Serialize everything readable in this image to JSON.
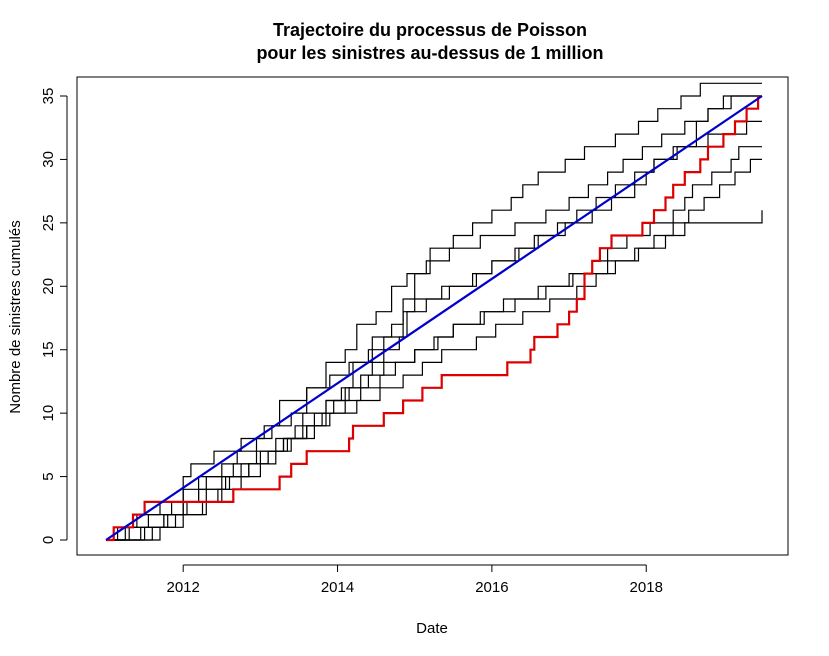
{
  "chart_data": {
    "type": "line",
    "title_lines": [
      "Trajectoire du processus de Poisson",
      "pour les sinistres au-dessus de 1 million"
    ],
    "xlabel": "Date",
    "ylabel": "Nombre de sinistres cumulés",
    "xlim": [
      2011.0,
      2019.5
    ],
    "ylim": [
      0,
      35
    ],
    "x_ticks": [
      2012,
      2014,
      2016,
      2018
    ],
    "x_tick_labels": [
      "2012",
      "2014",
      "2016",
      "2018"
    ],
    "y_ticks": [
      0,
      5,
      10,
      15,
      20,
      25,
      30,
      35
    ],
    "y_tick_labels": [
      "0",
      "5",
      "10",
      "15",
      "20",
      "25",
      "30",
      "35"
    ],
    "grid": false,
    "legend": "none",
    "highlight_series": {
      "color": "#dd0000",
      "type": "step",
      "points": [
        [
          2011.0,
          0
        ],
        [
          2011.1,
          1
        ],
        [
          2011.35,
          2
        ],
        [
          2011.5,
          3
        ],
        [
          2012.35,
          3
        ],
        [
          2012.65,
          4
        ],
        [
          2013.1,
          4
        ],
        [
          2013.25,
          5
        ],
        [
          2013.4,
          6
        ],
        [
          2013.6,
          7
        ],
        [
          2014.15,
          8
        ],
        [
          2014.2,
          9
        ],
        [
          2014.6,
          10
        ],
        [
          2014.85,
          11
        ],
        [
          2015.1,
          12
        ],
        [
          2015.35,
          13
        ],
        [
          2015.95,
          13
        ],
        [
          2016.2,
          14
        ],
        [
          2016.5,
          15
        ],
        [
          2016.55,
          16
        ],
        [
          2016.85,
          17
        ],
        [
          2017.0,
          18
        ],
        [
          2017.1,
          19
        ],
        [
          2017.2,
          21
        ],
        [
          2017.3,
          22
        ],
        [
          2017.4,
          23
        ],
        [
          2017.55,
          24
        ],
        [
          2017.95,
          25
        ],
        [
          2018.1,
          26
        ],
        [
          2018.25,
          27
        ],
        [
          2018.35,
          28
        ],
        [
          2018.5,
          29
        ],
        [
          2018.7,
          30
        ],
        [
          2018.8,
          31
        ],
        [
          2019.0,
          32
        ],
        [
          2019.15,
          33
        ],
        [
          2019.3,
          34
        ],
        [
          2019.45,
          35
        ]
      ]
    },
    "other_series_color": "#000000",
    "other_series": [
      {
        "points": [
          [
            2011.0,
            0
          ],
          [
            2011.15,
            1
          ],
          [
            2011.4,
            2
          ],
          [
            2011.7,
            3
          ],
          [
            2012.0,
            4
          ],
          [
            2012.3,
            5
          ],
          [
            2012.65,
            6
          ],
          [
            2012.95,
            7
          ],
          [
            2013.2,
            8
          ],
          [
            2013.45,
            9
          ],
          [
            2013.7,
            10
          ],
          [
            2013.85,
            11
          ],
          [
            2014.1,
            12
          ],
          [
            2014.3,
            13
          ],
          [
            2014.45,
            14
          ],
          [
            2014.6,
            15
          ],
          [
            2014.8,
            16
          ],
          [
            2014.9,
            18
          ],
          [
            2015.0,
            19
          ],
          [
            2015.35,
            20
          ],
          [
            2015.8,
            21
          ],
          [
            2016.0,
            22
          ],
          [
            2016.3,
            23
          ],
          [
            2016.55,
            24
          ],
          [
            2016.95,
            25
          ],
          [
            2017.3,
            26
          ],
          [
            2017.55,
            27
          ],
          [
            2017.85,
            28
          ],
          [
            2018.0,
            29
          ],
          [
            2018.1,
            30
          ],
          [
            2018.35,
            31
          ],
          [
            2018.65,
            33
          ],
          [
            2018.8,
            34
          ],
          [
            2019.1,
            35
          ],
          [
            2019.5,
            35
          ]
        ]
      },
      {
        "points": [
          [
            2011.0,
            0
          ],
          [
            2011.3,
            1
          ],
          [
            2011.75,
            2
          ],
          [
            2012.05,
            3
          ],
          [
            2012.2,
            4
          ],
          [
            2012.5,
            5
          ],
          [
            2012.75,
            6
          ],
          [
            2013.0,
            7
          ],
          [
            2013.3,
            8
          ],
          [
            2013.6,
            9
          ],
          [
            2013.85,
            10
          ],
          [
            2014.1,
            11
          ],
          [
            2014.3,
            12
          ],
          [
            2014.55,
            13
          ],
          [
            2014.75,
            14
          ],
          [
            2015.0,
            15
          ],
          [
            2015.25,
            16
          ],
          [
            2015.5,
            17
          ],
          [
            2015.9,
            18
          ],
          [
            2016.3,
            19
          ],
          [
            2016.7,
            20
          ],
          [
            2017.0,
            21
          ],
          [
            2017.3,
            22
          ],
          [
            2017.5,
            23
          ],
          [
            2017.75,
            24
          ],
          [
            2018.05,
            25
          ],
          [
            2018.35,
            26
          ],
          [
            2018.5,
            27
          ],
          [
            2018.6,
            28
          ],
          [
            2018.85,
            29
          ],
          [
            2019.1,
            30
          ],
          [
            2019.2,
            31
          ],
          [
            2019.5,
            31
          ]
        ]
      },
      {
        "points": [
          [
            2011.0,
            0
          ],
          [
            2011.6,
            1
          ],
          [
            2011.9,
            2
          ],
          [
            2012.3,
            3
          ],
          [
            2012.45,
            4
          ],
          [
            2012.6,
            5
          ],
          [
            2012.85,
            6
          ],
          [
            2013.1,
            7
          ],
          [
            2013.35,
            8
          ],
          [
            2013.6,
            9
          ],
          [
            2013.8,
            10
          ],
          [
            2013.95,
            11
          ],
          [
            2014.15,
            12
          ],
          [
            2014.4,
            13
          ],
          [
            2014.6,
            14
          ],
          [
            2015.0,
            15
          ],
          [
            2015.3,
            16
          ],
          [
            2015.5,
            17
          ],
          [
            2015.85,
            18
          ],
          [
            2016.15,
            19
          ],
          [
            2016.6,
            20
          ],
          [
            2017.05,
            21
          ],
          [
            2017.5,
            22
          ],
          [
            2017.9,
            23
          ],
          [
            2018.25,
            24
          ],
          [
            2018.5,
            25
          ],
          [
            2019.5,
            25
          ],
          [
            2019.5,
            26
          ]
        ]
      },
      {
        "points": [
          [
            2011.0,
            0
          ],
          [
            2011.25,
            1
          ],
          [
            2011.55,
            2
          ],
          [
            2011.85,
            3
          ],
          [
            2012.0,
            5
          ],
          [
            2012.1,
            6
          ],
          [
            2012.4,
            7
          ],
          [
            2012.75,
            8
          ],
          [
            2013.05,
            9
          ],
          [
            2013.25,
            11
          ],
          [
            2013.6,
            12
          ],
          [
            2013.9,
            13
          ],
          [
            2014.15,
            14
          ],
          [
            2014.4,
            15
          ],
          [
            2014.6,
            16
          ],
          [
            2014.85,
            18
          ],
          [
            2015.15,
            19
          ],
          [
            2015.45,
            20
          ],
          [
            2015.75,
            21
          ],
          [
            2016.0,
            22
          ],
          [
            2016.35,
            23
          ],
          [
            2016.6,
            24
          ],
          [
            2016.85,
            25
          ],
          [
            2017.1,
            26
          ],
          [
            2017.35,
            27
          ],
          [
            2017.6,
            28
          ],
          [
            2017.85,
            29
          ],
          [
            2018.1,
            30
          ],
          [
            2018.4,
            31
          ],
          [
            2018.8,
            32
          ],
          [
            2019.3,
            33
          ],
          [
            2019.5,
            33
          ]
        ]
      },
      {
        "points": [
          [
            2011.0,
            0
          ],
          [
            2011.45,
            1
          ],
          [
            2011.8,
            2
          ],
          [
            2012.0,
            3
          ],
          [
            2012.3,
            4
          ],
          [
            2012.55,
            5
          ],
          [
            2012.85,
            6
          ],
          [
            2013.1,
            7
          ],
          [
            2013.3,
            8
          ],
          [
            2013.55,
            10
          ],
          [
            2013.85,
            11
          ],
          [
            2014.05,
            12
          ],
          [
            2014.2,
            14
          ],
          [
            2014.45,
            16
          ],
          [
            2014.7,
            17
          ],
          [
            2014.85,
            19
          ],
          [
            2015.0,
            21
          ],
          [
            2015.2,
            23
          ],
          [
            2015.5,
            24
          ],
          [
            2015.75,
            25
          ],
          [
            2016.0,
            26
          ],
          [
            2016.25,
            27
          ],
          [
            2016.4,
            28
          ],
          [
            2016.6,
            29
          ],
          [
            2016.95,
            30
          ],
          [
            2017.2,
            31
          ],
          [
            2017.6,
            32
          ],
          [
            2017.9,
            33
          ],
          [
            2018.15,
            34
          ],
          [
            2018.45,
            35
          ],
          [
            2018.7,
            36
          ],
          [
            2019.5,
            36
          ]
        ]
      },
      {
        "points": [
          [
            2011.0,
            0
          ],
          [
            2011.5,
            1
          ],
          [
            2011.75,
            2
          ],
          [
            2012.0,
            3
          ],
          [
            2012.2,
            5
          ],
          [
            2012.5,
            6
          ],
          [
            2012.7,
            7
          ],
          [
            2012.95,
            8
          ],
          [
            2013.15,
            9
          ],
          [
            2013.4,
            10
          ],
          [
            2013.6,
            12
          ],
          [
            2013.85,
            14
          ],
          [
            2014.1,
            15
          ],
          [
            2014.25,
            17
          ],
          [
            2014.5,
            18
          ],
          [
            2014.7,
            20
          ],
          [
            2014.9,
            21
          ],
          [
            2015.15,
            22
          ],
          [
            2015.45,
            23
          ],
          [
            2015.85,
            24
          ],
          [
            2016.3,
            25
          ],
          [
            2016.7,
            26
          ],
          [
            2017.0,
            27
          ],
          [
            2017.25,
            28
          ],
          [
            2017.5,
            29
          ],
          [
            2017.7,
            30
          ],
          [
            2017.95,
            31
          ],
          [
            2018.2,
            32
          ],
          [
            2018.5,
            33
          ],
          [
            2018.8,
            34
          ],
          [
            2019.0,
            35
          ],
          [
            2019.5,
            35
          ]
        ]
      },
      {
        "points": [
          [
            2011.0,
            0
          ],
          [
            2011.7,
            1
          ],
          [
            2012.0,
            2
          ],
          [
            2012.25,
            3
          ],
          [
            2012.5,
            4
          ],
          [
            2012.75,
            5
          ],
          [
            2013.0,
            6
          ],
          [
            2013.2,
            7
          ],
          [
            2013.4,
            8
          ],
          [
            2013.7,
            9
          ],
          [
            2013.9,
            10
          ],
          [
            2014.25,
            11
          ],
          [
            2014.55,
            12
          ],
          [
            2014.85,
            13
          ],
          [
            2015.1,
            14
          ],
          [
            2015.35,
            15
          ],
          [
            2015.8,
            16
          ],
          [
            2016.05,
            17
          ],
          [
            2016.4,
            18
          ],
          [
            2016.75,
            19
          ],
          [
            2017.1,
            20
          ],
          [
            2017.35,
            21
          ],
          [
            2017.6,
            22
          ],
          [
            2017.85,
            23
          ],
          [
            2018.1,
            24
          ],
          [
            2018.35,
            25
          ],
          [
            2018.55,
            26
          ],
          [
            2018.75,
            27
          ],
          [
            2018.95,
            28
          ],
          [
            2019.15,
            29
          ],
          [
            2019.35,
            30
          ],
          [
            2019.5,
            30
          ]
        ]
      }
    ],
    "trend_line": {
      "color": "#0000cc",
      "points": [
        [
          2011.0,
          0
        ],
        [
          2019.5,
          35
        ]
      ]
    }
  }
}
